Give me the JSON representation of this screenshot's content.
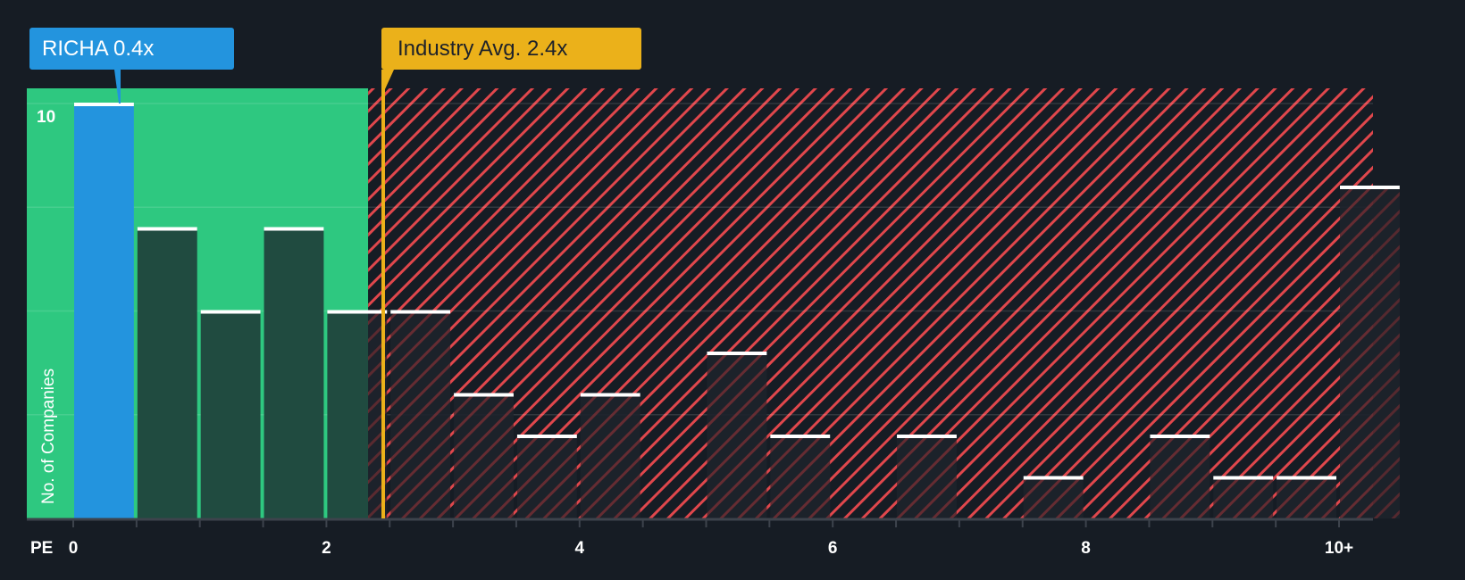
{
  "chart_data": {
    "type": "bar",
    "title": "",
    "xlabel": "PE",
    "ylabel": "No. of Companies",
    "x_tick_labels": [
      "0",
      "2",
      "4",
      "6",
      "8",
      "10+"
    ],
    "y_tick_labels": [
      "10"
    ],
    "ylim": [
      0,
      10.3
    ],
    "bin_width": 0.5,
    "categories": [
      "0-0.5",
      "0.5-1",
      "1-1.5",
      "1.5-2",
      "2-2.5",
      "2.5-3",
      "3-3.5",
      "3.5-4",
      "4-4.5",
      "4.5-5",
      "5-5.5",
      "5.5-6",
      "6-6.5",
      "6.5-7",
      "7-7.5",
      "7.5-8",
      "8-8.5",
      "8.5-9",
      "9-9.5",
      "9.5-10",
      "10+"
    ],
    "values": [
      10,
      7,
      5,
      7,
      5,
      5,
      3,
      2,
      3,
      0,
      4,
      2,
      0,
      2,
      0,
      1,
      0,
      2,
      1,
      1,
      8
    ],
    "highlight_index": 0,
    "company": {
      "label": "RICHA 0.4x",
      "ticker": "RICHA",
      "value": 0.4
    },
    "industry": {
      "label": "Industry Avg. 2.4x",
      "value": 2.4
    },
    "regions": {
      "undervalued_until": 2.33,
      "undervalued_color": "#2ec880",
      "overvalued_color": "#e0474c"
    },
    "grid": true,
    "gridlines": [
      0,
      2.5,
      5,
      7.5,
      10
    ],
    "colors": {
      "company_bar": "#2394de",
      "bar_green_zone": "#204b40",
      "bar_red_zone": "#1d222b",
      "bar_cap": "#ffffff",
      "industry_line": "#ebb11a",
      "background": "#161c24"
    }
  }
}
